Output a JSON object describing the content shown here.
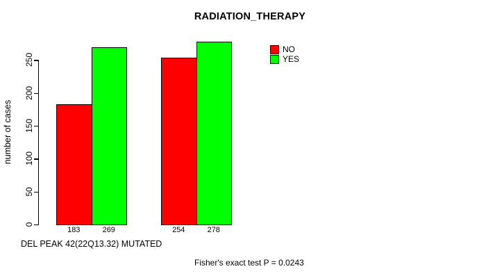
{
  "chart_data": {
    "type": "bar",
    "title": "RADIATION_THERAPY",
    "xlabel": "DEL PEAK 42(22Q13.32) MUTATED",
    "ylabel": "number of cases",
    "ylim": [
      0,
      280
    ],
    "yticks": [
      0,
      50,
      100,
      150,
      200,
      250
    ],
    "categories": [
      "",
      ""
    ],
    "series": [
      {
        "name": "NO",
        "color": "#ff0000",
        "values": [
          183,
          254
        ]
      },
      {
        "name": "YES",
        "color": "#00ff00",
        "values": [
          269,
          278
        ]
      }
    ],
    "bar_value_labels": [
      "183",
      "269",
      "254",
      "278"
    ],
    "legend_position": "top-right",
    "grid": false,
    "annotation": "Fisher's exact test P = 0.0243"
  },
  "colors": {
    "no": "#ff0000",
    "yes": "#00ff00",
    "axis": "#000000",
    "background": "#ffffff"
  }
}
